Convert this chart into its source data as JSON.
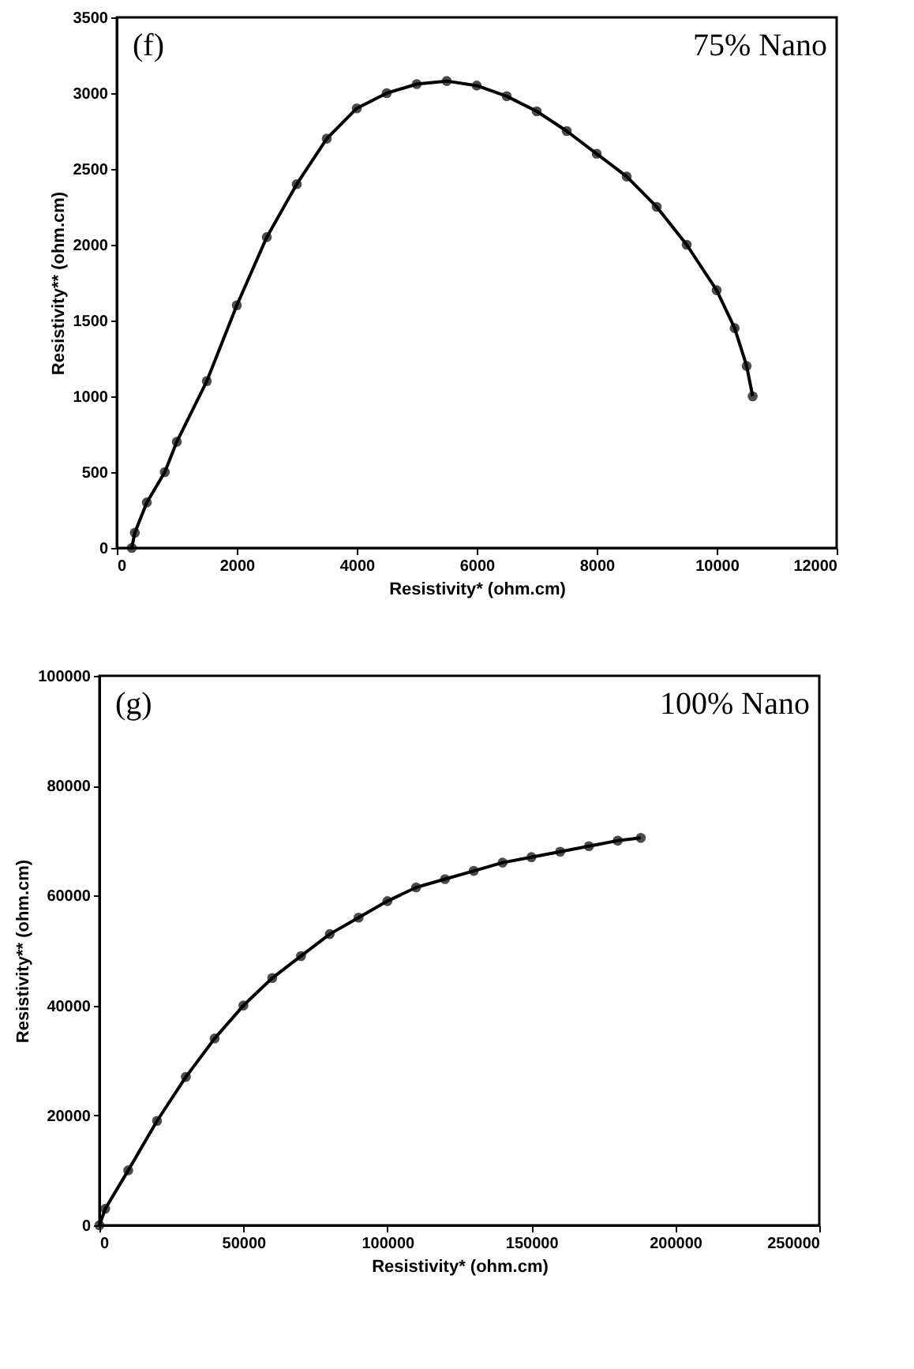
{
  "chart_data": [
    {
      "type": "line",
      "xlabel": "Resistivity* (ohm.cm)",
      "ylabel": "Resistivity** (ohm.cm)",
      "annotations": [
        "(f)",
        "75% Nano"
      ],
      "marker": "circle",
      "legend": false,
      "grid": false,
      "xlim": [
        0,
        12000
      ],
      "xticks": [
        0,
        2000,
        4000,
        6000,
        8000,
        10000,
        12000
      ],
      "ylim": [
        0,
        3500
      ],
      "yticks": [
        0,
        500,
        1000,
        1500,
        2000,
        2500,
        3000,
        3500
      ],
      "x": [
        250,
        300,
        500,
        800,
        1000,
        1500,
        2000,
        2500,
        3000,
        3500,
        4000,
        4500,
        5000,
        5500,
        6000,
        6500,
        7000,
        7500,
        8000,
        8500,
        9000,
        9500,
        10000,
        10300,
        10500,
        10600
      ],
      "series": [
        {
          "color": "#000000",
          "values": [
            0,
            100,
            300,
            500,
            700,
            1100,
            1600,
            2050,
            2400,
            2700,
            2900,
            3000,
            3060,
            3080,
            3050,
            2980,
            2880,
            2750,
            2600,
            2450,
            2250,
            2000,
            1700,
            1450,
            1200,
            1000
          ]
        }
      ]
    },
    {
      "type": "line",
      "xlabel": "Resistivity* (ohm.cm)",
      "ylabel": "Resistivity** (ohm.cm)",
      "annotations": [
        "(g)",
        "100% Nano"
      ],
      "marker": "circle",
      "legend": false,
      "grid": false,
      "xlim": [
        0,
        250000
      ],
      "xticks": [
        0,
        50000,
        100000,
        150000,
        200000,
        250000
      ],
      "ylim": [
        0,
        100000
      ],
      "yticks": [
        0,
        20000,
        40000,
        60000,
        80000,
        100000
      ],
      "x": [
        0,
        2000,
        10000,
        20000,
        30000,
        40000,
        50000,
        60000,
        70000,
        80000,
        90000,
        100000,
        110000,
        120000,
        130000,
        140000,
        150000,
        160000,
        170000,
        180000,
        188000
      ],
      "series": [
        {
          "color": "#000000",
          "values": [
            0,
            3000,
            10000,
            19000,
            27000,
            34000,
            40000,
            45000,
            49000,
            53000,
            56000,
            59000,
            61500,
            63000,
            64500,
            66000,
            67000,
            68000,
            69000,
            70000,
            70500
          ]
        }
      ]
    }
  ]
}
